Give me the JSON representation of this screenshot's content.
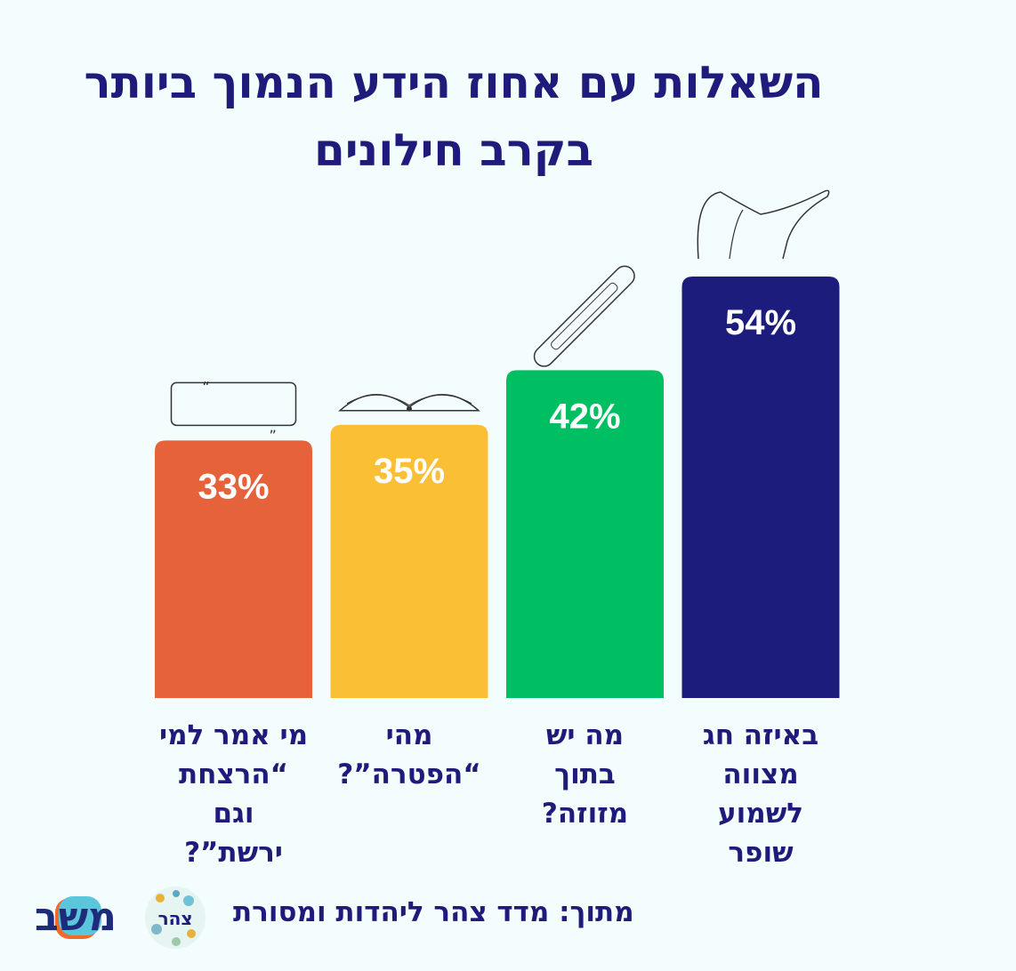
{
  "chart_data": {
    "type": "bar",
    "title_lines": [
      "השאלות עם אחוז הידע הנמוך ביותר",
      "בקרב חילונים"
    ],
    "categories": [
      [
        "מי אמר למי",
        "“הרצחת",
        "וגם",
        "ירשת”?"
      ],
      [
        "מהי",
        "“הפטרה”?"
      ],
      [
        "מה יש",
        "בתוך",
        "מזוזה?"
      ],
      [
        "באיזה חג",
        "מצווה",
        "לשמוע",
        "שופר"
      ]
    ],
    "values": [
      33,
      35,
      42,
      54
    ],
    "value_labels": [
      "33%",
      "35%",
      "42%",
      "54%"
    ],
    "colors": [
      "#e5623b",
      "#fbbf36",
      "#00bf63",
      "#1c1c7c"
    ],
    "icons": [
      "quote-box-icon",
      "open-book-icon",
      "mezuzah-icon",
      "shofar-icon"
    ],
    "ylim": [
      0,
      54
    ],
    "grid": false,
    "legend": "none"
  },
  "footer": {
    "source": "מתוך: מדד צהר ליהדות ומסורת",
    "logo_tzohar": "צהר",
    "logo_mishov": "משב"
  }
}
